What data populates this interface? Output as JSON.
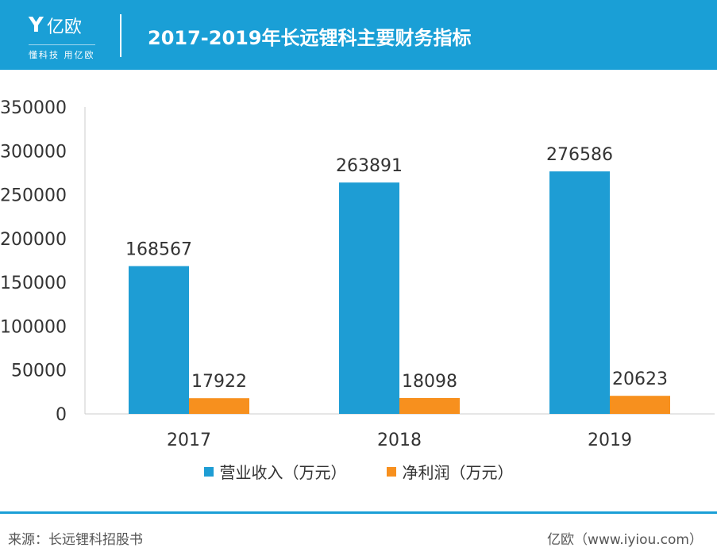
{
  "header": {
    "logo_text": "亿欧",
    "slogan": "懂科技 用亿欧",
    "title": "2017-2019年长远锂科主要财务指标",
    "color": "#1a9fd6"
  },
  "chart_data": {
    "type": "bar",
    "categories": [
      "2017",
      "2018",
      "2019"
    ],
    "series": [
      {
        "name": "营业收入（万元）",
        "values": [
          168567,
          263891,
          276586
        ],
        "color": "#1e9dd4"
      },
      {
        "name": "净利润（万元）",
        "values": [
          17922,
          18098,
          20623
        ],
        "color": "#f7901e"
      }
    ],
    "ylim": [
      0,
      350000
    ],
    "yticks": [
      0,
      50000,
      100000,
      150000,
      200000,
      250000,
      300000,
      350000
    ],
    "grid": false,
    "legend": "bottom"
  },
  "footer": {
    "source": "来源：长远锂科招股书",
    "credit": "亿欧（www.iyiou.com）"
  }
}
